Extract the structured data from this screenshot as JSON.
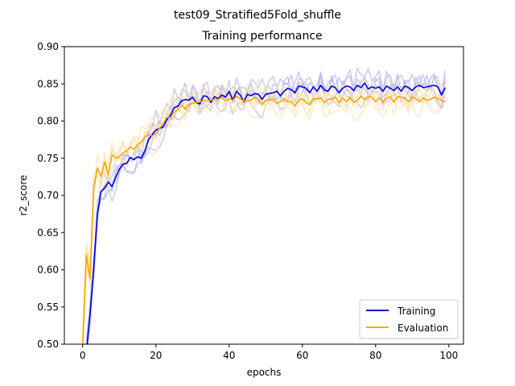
{
  "chart_data": {
    "type": "line",
    "suptitle": "test09_Stratified5Fold_shuffle",
    "title": "Training performance",
    "xlabel": "epochs",
    "ylabel": "r2_score",
    "xlim": [
      -5,
      104
    ],
    "ylim": [
      0.5,
      0.9
    ],
    "xticks": [
      0,
      20,
      40,
      60,
      80,
      100
    ],
    "yticks": [
      0.5,
      0.55,
      0.6,
      0.65,
      0.7,
      0.75,
      0.8,
      0.85,
      0.9
    ],
    "xtick_labels": [
      "0",
      "20",
      "40",
      "60",
      "80",
      "100"
    ],
    "ytick_labels": [
      "0.50",
      "0.55",
      "0.60",
      "0.65",
      "0.70",
      "0.75",
      "0.80",
      "0.85",
      "0.90"
    ],
    "grid": false,
    "legend_position": "lower-right",
    "colors": {
      "training": "#0000dd",
      "evaluation": "#ffa500",
      "training_fold": "#b4b4f2",
      "evaluation_fold": "#fde3b0"
    },
    "series": [
      {
        "name": "Training",
        "x": [
          1,
          2,
          3,
          4,
          5,
          6,
          7,
          8,
          9,
          10,
          11,
          12,
          13,
          14,
          15,
          16,
          17,
          18,
          19,
          20,
          21,
          22,
          23,
          24,
          25,
          26,
          27,
          28,
          29,
          30,
          31,
          32,
          33,
          34,
          35,
          36,
          37,
          38,
          39,
          40,
          41,
          42,
          43,
          44,
          45,
          46,
          47,
          48,
          49,
          50,
          51,
          52,
          53,
          54,
          55,
          56,
          57,
          58,
          59,
          60,
          61,
          62,
          63,
          64,
          65,
          66,
          67,
          68,
          69,
          70,
          71,
          72,
          73,
          74,
          75,
          76,
          77,
          78,
          79,
          80,
          81,
          82,
          83,
          84,
          85,
          86,
          87,
          88,
          89,
          90,
          91,
          92,
          93,
          94,
          95,
          96,
          97,
          98,
          99
        ],
        "values": [
          0.49,
          0.54,
          0.6,
          0.675,
          0.705,
          0.71,
          0.718,
          0.712,
          0.724,
          0.735,
          0.742,
          0.743,
          0.751,
          0.748,
          0.752,
          0.75,
          0.76,
          0.775,
          0.782,
          0.788,
          0.79,
          0.792,
          0.802,
          0.808,
          0.818,
          0.82,
          0.827,
          0.829,
          0.828,
          0.832,
          0.825,
          0.823,
          0.834,
          0.833,
          0.825,
          0.833,
          0.83,
          0.835,
          0.832,
          0.84,
          0.828,
          0.84,
          0.835,
          0.826,
          0.836,
          0.834,
          0.837,
          0.836,
          0.829,
          0.836,
          0.837,
          0.838,
          0.84,
          0.834,
          0.84,
          0.844,
          0.842,
          0.838,
          0.847,
          0.846,
          0.844,
          0.838,
          0.846,
          0.84,
          0.848,
          0.842,
          0.84,
          0.847,
          0.845,
          0.838,
          0.844,
          0.847,
          0.846,
          0.841,
          0.848,
          0.845,
          0.851,
          0.843,
          0.846,
          0.844,
          0.846,
          0.84,
          0.847,
          0.844,
          0.841,
          0.846,
          0.84,
          0.847,
          0.845,
          0.841,
          0.846,
          0.848,
          0.845,
          0.846,
          0.847,
          0.848,
          0.846,
          0.835,
          0.845
        ]
      },
      {
        "name": "Evaluation",
        "x": [
          0,
          1,
          2,
          3,
          4,
          5,
          6,
          7,
          8,
          9,
          10,
          11,
          12,
          13,
          14,
          15,
          16,
          17,
          18,
          19,
          20,
          21,
          22,
          23,
          24,
          25,
          26,
          27,
          28,
          29,
          30,
          31,
          32,
          33,
          34,
          35,
          36,
          37,
          38,
          39,
          40,
          41,
          42,
          43,
          44,
          45,
          46,
          47,
          48,
          49,
          50,
          51,
          52,
          53,
          54,
          55,
          56,
          57,
          58,
          59,
          60,
          61,
          62,
          63,
          64,
          65,
          66,
          67,
          68,
          69,
          70,
          71,
          72,
          73,
          74,
          75,
          76,
          77,
          78,
          79,
          80,
          81,
          82,
          83,
          84,
          85,
          86,
          87,
          88,
          89,
          90,
          91,
          92,
          93,
          94,
          95,
          96,
          97,
          98,
          99
        ],
        "values": [
          0.5,
          0.62,
          0.588,
          0.71,
          0.737,
          0.725,
          0.745,
          0.728,
          0.755,
          0.75,
          0.752,
          0.757,
          0.76,
          0.765,
          0.762,
          0.768,
          0.772,
          0.778,
          0.782,
          0.78,
          0.783,
          0.79,
          0.797,
          0.805,
          0.805,
          0.812,
          0.815,
          0.822,
          0.816,
          0.822,
          0.824,
          0.825,
          0.826,
          0.827,
          0.827,
          0.828,
          0.829,
          0.829,
          0.832,
          0.827,
          0.83,
          0.828,
          0.833,
          0.83,
          0.827,
          0.827,
          0.828,
          0.832,
          0.829,
          0.822,
          0.828,
          0.828,
          0.83,
          0.824,
          0.826,
          0.83,
          0.826,
          0.826,
          0.82,
          0.828,
          0.83,
          0.825,
          0.822,
          0.83,
          0.83,
          0.831,
          0.825,
          0.829,
          0.83,
          0.832,
          0.825,
          0.831,
          0.826,
          0.832,
          0.825,
          0.828,
          0.833,
          0.829,
          0.833,
          0.832,
          0.826,
          0.831,
          0.826,
          0.83,
          0.833,
          0.825,
          0.833,
          0.832,
          0.831,
          0.826,
          0.833,
          0.83,
          0.826,
          0.831,
          0.828,
          0.829,
          0.832,
          0.83,
          0.828,
          0.826
        ]
      }
    ]
  }
}
